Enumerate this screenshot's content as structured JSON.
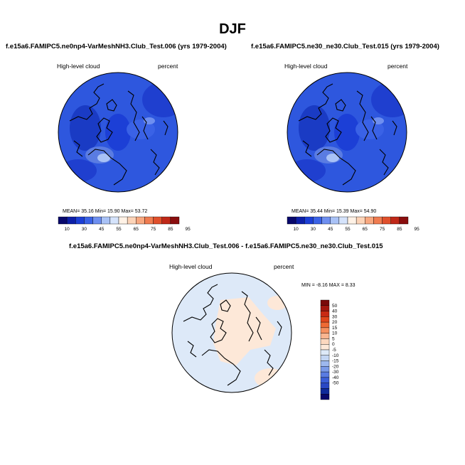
{
  "figure": {
    "title": "DJF",
    "panels": [
      {
        "title": "f.e15a6.FAMIPC5.ne0np4-VarMeshNH3.Club_Test.006 (yrs 1979-2004)",
        "field_label": "High-level cloud",
        "units_label": "percent",
        "stats": "MEAN=  35.16  Min=  15.90  Max=  53.72"
      },
      {
        "title": "f.e15a6.FAMIPC5.ne30_ne30.Club_Test.015 (yrs 1979-2004)",
        "field_label": "High-level cloud",
        "units_label": "percent",
        "stats": "MEAN=  35.44  Min=  15.39  Max=  54.90"
      },
      {
        "title": "f.e15a6.FAMIPC5.ne0np4-VarMeshNH3.Club_Test.006 - f.e15a6.FAMIPC5.ne30_ne30.Club_Test.015",
        "field_label": "High-level cloud",
        "units_label": "percent",
        "stats": "MIN =  -8.16 MAX =   8.33"
      }
    ]
  },
  "chart_data": [
    {
      "type": "heatmap",
      "projection": "north-polar-stereographic",
      "title": "f.e15a6.FAMIPC5.ne0np4-VarMeshNH3.Club_Test.006 (yrs 1979-2004)",
      "variable": "High-level cloud",
      "units": "percent",
      "mean": 35.16,
      "min": 15.9,
      "max": 53.72,
      "colorbar": {
        "orientation": "horizontal",
        "tick_labels": [
          "10",
          "30",
          "45",
          "55",
          "65",
          "75",
          "85",
          "95"
        ],
        "colors": [
          "#08086b",
          "#0d1fa8",
          "#1c3fd6",
          "#3a62e6",
          "#6e8ff0",
          "#a9c2f6",
          "#d5e3fb",
          "#fff2e6",
          "#fcd4b8",
          "#f8a880",
          "#f07c50",
          "#e0502c",
          "#c02818",
          "#8a0e0e"
        ]
      }
    },
    {
      "type": "heatmap",
      "projection": "north-polar-stereographic",
      "title": "f.e15a6.FAMIPC5.ne30_ne30.Club_Test.015 (yrs 1979-2004)",
      "variable": "High-level cloud",
      "units": "percent",
      "mean": 35.44,
      "min": 15.39,
      "max": 54.9,
      "colorbar": {
        "orientation": "horizontal",
        "tick_labels": [
          "10",
          "30",
          "45",
          "55",
          "65",
          "75",
          "85",
          "95"
        ],
        "colors": [
          "#08086b",
          "#0d1fa8",
          "#1c3fd6",
          "#3a62e6",
          "#6e8ff0",
          "#a9c2f6",
          "#d5e3fb",
          "#fff2e6",
          "#fcd4b8",
          "#f8a880",
          "#f07c50",
          "#e0502c",
          "#c02818",
          "#8a0e0e"
        ]
      }
    },
    {
      "type": "heatmap",
      "projection": "north-polar-stereographic",
      "title": "f.e15a6.FAMIPC5.ne0np4-VarMeshNH3.Club_Test.006 - f.e15a6.FAMIPC5.ne30_ne30.Club_Test.015",
      "variable": "High-level cloud",
      "units": "percent",
      "min": -8.16,
      "max": 8.33,
      "colorbar": {
        "orientation": "vertical",
        "tick_labels": [
          "50",
          "40",
          "30",
          "20",
          "15",
          "10",
          "5",
          "0",
          "-5",
          "-10",
          "-15",
          "-20",
          "-30",
          "-40",
          "-50"
        ],
        "colors": [
          "#7a0a0a",
          "#a3170f",
          "#c82a14",
          "#e0461c",
          "#ef6a34",
          "#f59060",
          "#f9b590",
          "#fcd8bf",
          "#fde8d8",
          "#dde9f8",
          "#c2d5f3",
          "#9db8ee",
          "#7a9ae8",
          "#5a7ce2",
          "#3c5fd8",
          "#2a48c4",
          "#0f2a9a",
          "#08086b"
        ]
      }
    }
  ]
}
